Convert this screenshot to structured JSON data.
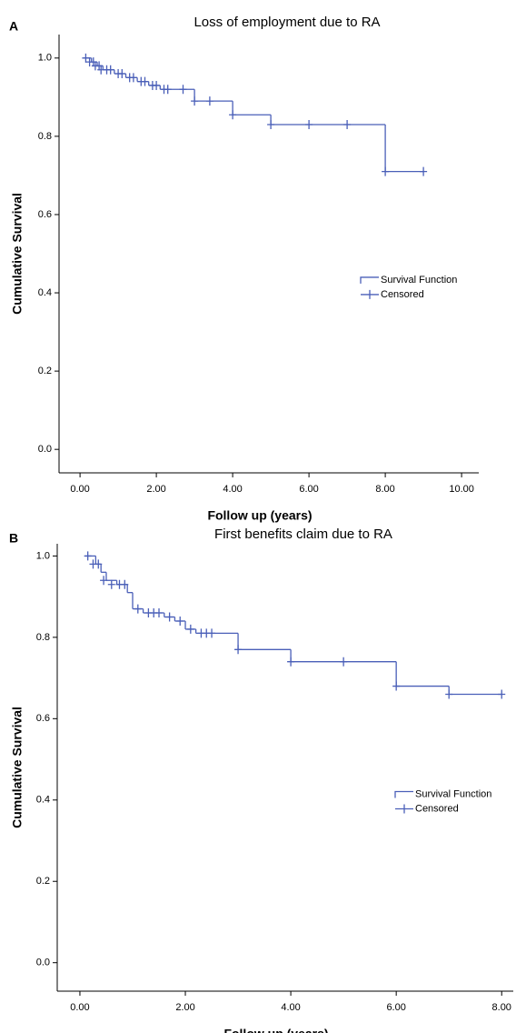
{
  "chart_data": [
    {
      "type": "survival",
      "panel_label": "A",
      "title": "Loss of employment due to RA",
      "x_label": "Follow up (years)",
      "y_label": "Cumulative Survival",
      "xlim": [
        -0.55,
        10.45
      ],
      "ylim": [
        -0.06,
        1.06
      ],
      "xticks": [
        {
          "value": 0,
          "label": "0.00"
        },
        {
          "value": 2,
          "label": "2.00"
        },
        {
          "value": 4,
          "label": "4.00"
        },
        {
          "value": 6,
          "label": "6.00"
        },
        {
          "value": 8,
          "label": "8.00"
        },
        {
          "value": 10,
          "label": "10.00"
        }
      ],
      "yticks": [
        {
          "value": 0,
          "label": "0.0"
        },
        0.2,
        0.4,
        0.6,
        0.8,
        {
          "value": 1,
          "label": "1.0"
        }
      ],
      "legend": "right",
      "series": [
        {
          "name": "Survival Function",
          "color": "#4a5fb8",
          "x": [
            0.1,
            0.3,
            0.45,
            0.6,
            0.9,
            1.2,
            1.5,
            1.8,
            2.1,
            3.0,
            4.0,
            5.0,
            8.0
          ],
          "values": [
            1.0,
            0.99,
            0.98,
            0.97,
            0.96,
            0.95,
            0.94,
            0.93,
            0.92,
            0.89,
            0.855,
            0.83,
            0.71
          ]
        },
        {
          "name": "Censored",
          "color": "#4a5fb8",
          "x": [
            0.15,
            0.25,
            0.35,
            0.4,
            0.5,
            0.55,
            0.7,
            0.8,
            1.0,
            1.1,
            1.3,
            1.4,
            1.6,
            1.7,
            1.9,
            2.0,
            2.2,
            2.3,
            2.7,
            3.0,
            3.4,
            4.0,
            5.0,
            6.0,
            7.0,
            8.0,
            9.0
          ],
          "values": [
            1.0,
            0.99,
            0.99,
            0.98,
            0.98,
            0.97,
            0.97,
            0.97,
            0.96,
            0.96,
            0.95,
            0.95,
            0.94,
            0.94,
            0.93,
            0.93,
            0.92,
            0.92,
            0.92,
            0.89,
            0.89,
            0.855,
            0.83,
            0.83,
            0.83,
            0.71,
            0.71
          ]
        }
      ]
    },
    {
      "type": "survival",
      "panel_label": "B",
      "title": "First benefits claim due to RA",
      "x_label": "Follow up (years)",
      "y_label": "Cumulative Survival",
      "xlim": [
        -0.43,
        8.22
      ],
      "ylim": [
        -0.07,
        1.03
      ],
      "xticks": [
        {
          "value": 0,
          "label": "0.00"
        },
        {
          "value": 2,
          "label": "2.00"
        },
        {
          "value": 4,
          "label": "4.00"
        },
        {
          "value": 6,
          "label": "6.00"
        },
        {
          "value": 8,
          "label": "8.00"
        }
      ],
      "yticks": [
        {
          "value": 0,
          "label": "0.0"
        },
        0.2,
        0.4,
        0.6,
        0.8,
        {
          "value": 1,
          "label": "1.0"
        }
      ],
      "legend": "right",
      "series": [
        {
          "name": "Survival Function",
          "color": "#4a5fb8",
          "x": [
            0.1,
            0.3,
            0.4,
            0.5,
            0.7,
            0.9,
            1.0,
            1.2,
            1.6,
            1.8,
            2.0,
            2.2,
            3.0,
            4.0,
            6.0,
            7.0
          ],
          "values": [
            1.0,
            0.98,
            0.96,
            0.94,
            0.93,
            0.91,
            0.87,
            0.86,
            0.85,
            0.84,
            0.82,
            0.81,
            0.77,
            0.74,
            0.68,
            0.66
          ]
        },
        {
          "name": "Censored",
          "color": "#4a5fb8",
          "x": [
            0.15,
            0.25,
            0.35,
            0.45,
            0.6,
            0.75,
            0.85,
            1.1,
            1.3,
            1.4,
            1.5,
            1.7,
            1.9,
            2.1,
            2.3,
            2.4,
            2.5,
            3.0,
            4.0,
            5.0,
            6.0,
            7.0,
            8.0
          ],
          "values": [
            1.0,
            0.98,
            0.98,
            0.94,
            0.93,
            0.93,
            0.93,
            0.87,
            0.86,
            0.86,
            0.86,
            0.85,
            0.84,
            0.82,
            0.81,
            0.81,
            0.81,
            0.77,
            0.74,
            0.74,
            0.68,
            0.66,
            0.66
          ]
        }
      ]
    }
  ]
}
